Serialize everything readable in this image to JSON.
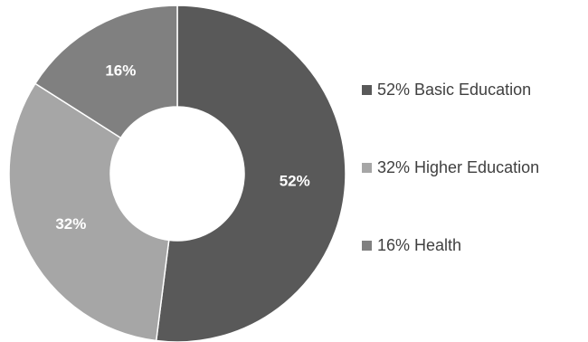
{
  "chart_data": {
    "type": "pie",
    "subtype": "donut",
    "categories": [
      "Basic Education",
      "Higher Education",
      "Health"
    ],
    "values": [
      52,
      32,
      16
    ],
    "unit": "%",
    "data_labels": [
      "52%",
      "32%",
      "16%"
    ],
    "legend_labels": [
      "52% Basic Education",
      "32% Higher Education",
      "16% Health"
    ],
    "colors": [
      "#595959",
      "#a6a6a6",
      "#808080"
    ],
    "legend_position": "right",
    "title": ""
  }
}
